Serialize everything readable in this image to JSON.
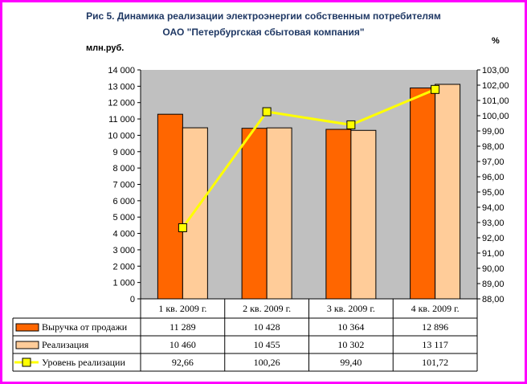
{
  "chart_data": {
    "type": "bar",
    "title": "Рис 5. Динамика реализации электроэнергии собственным потребителям",
    "subtitle": "ОАО \"Петербургская сбытовая компания\"",
    "ylabel_left": "млн.руб.",
    "ylabel_right": "%",
    "categories": [
      "1 кв. 2009 г.",
      "2 кв. 2009 г.",
      "3 кв. 2009 г.",
      "4 кв. 2009 г."
    ],
    "ylim_left": [
      0,
      14000
    ],
    "ylim_right": [
      88,
      103
    ],
    "left_ticks": [
      "0",
      "1 000",
      "2 000",
      "3 000",
      "4 000",
      "5 000",
      "6 000",
      "7 000",
      "8 000",
      "9 000",
      "10 000",
      "11 000",
      "12 000",
      "13 000",
      "14 000"
    ],
    "right_ticks": [
      "88,00",
      "89,00",
      "90,00",
      "91,00",
      "92,00",
      "93,00",
      "94,00",
      "95,00",
      "96,00",
      "97,00",
      "98,00",
      "99,00",
      "100,00",
      "101,00",
      "102,00",
      "103,00"
    ],
    "grid": false,
    "legend": "data-table",
    "series": [
      {
        "name": "Выручка от продажи",
        "type": "bar",
        "axis": "left",
        "color": "#ff6600",
        "values": [
          11289,
          10428,
          10364,
          12896
        ],
        "labels": [
          "11 289",
          "10 428",
          "10 364",
          "12 896"
        ]
      },
      {
        "name": "Реализация",
        "type": "bar",
        "axis": "left",
        "color": "#ffcc99",
        "values": [
          10460,
          10455,
          10302,
          13117
        ],
        "labels": [
          "10 460",
          "10 455",
          "10 302",
          "13 117"
        ]
      },
      {
        "name": "Уровень реализации",
        "type": "line",
        "axis": "right",
        "color": "#ffff00",
        "values": [
          92.66,
          100.26,
          99.4,
          101.72
        ],
        "labels": [
          "92,66",
          "100,26",
          "99,40",
          "101,72"
        ]
      }
    ]
  },
  "colors": {
    "frame": "#ff00ff",
    "plot_background": "#c0c0c0",
    "title": "#1f3864"
  }
}
